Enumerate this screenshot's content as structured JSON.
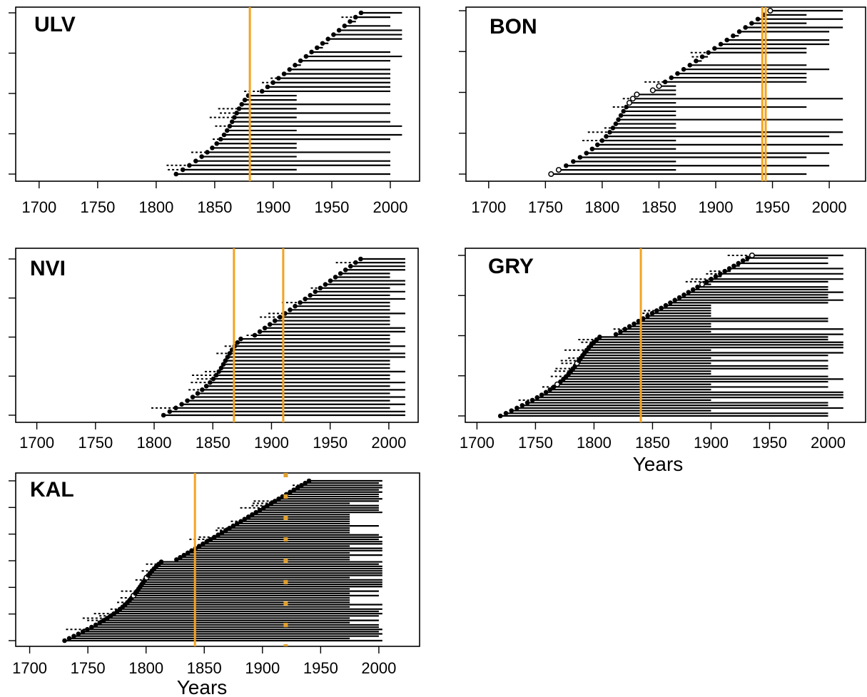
{
  "colors": {
    "event_line": "#f4a321",
    "event_dotted": "#e0a030",
    "series": "#000000",
    "background": "#ffffff"
  },
  "chart_data": [
    {
      "type": "line",
      "panel": "ULV",
      "title": "ULV",
      "xlabel": "",
      "xlim": [
        1680,
        2025
      ],
      "xticks": [
        1700,
        1750,
        1800,
        1850,
        1900,
        1950,
        2000
      ],
      "n_series": 38,
      "series_start_range": [
        1817,
        1975
      ],
      "series_end": [
        1920,
        2000,
        2010
      ],
      "event_years": [
        1880
      ],
      "dotted_event_years": [],
      "open_pith_indices": []
    },
    {
      "type": "line",
      "panel": "BON",
      "title": "BON",
      "xlabel": "",
      "xlim": [
        1680,
        2032
      ],
      "xticks": [
        1700,
        1750,
        1800,
        1850,
        1900,
        1950,
        2000
      ],
      "n_series": 40,
      "series_start_range": [
        1755,
        1948
      ],
      "series_end": [
        1865,
        1980,
        2000,
        2012
      ],
      "event_years": [
        1941,
        1944
      ],
      "dotted_event_years": [],
      "open_pith_indices": [
        0,
        1,
        17,
        18,
        19,
        20,
        21,
        39
      ]
    },
    {
      "type": "line",
      "panel": "NVI",
      "title": "NVI",
      "xlabel": "",
      "xlim": [
        1682,
        2025
      ],
      "xticks": [
        1700,
        1750,
        1800,
        1850,
        1900,
        1950,
        2000
      ],
      "n_series": 44,
      "series_start_range": [
        1808,
        1976
      ],
      "series_end": [
        2001,
        2014
      ],
      "event_years": [
        1868,
        1910
      ],
      "dotted_event_years": [],
      "open_pith_indices": []
    },
    {
      "type": "line",
      "panel": "GRY",
      "title": "GRY",
      "xlabel": "Years",
      "xlim": [
        1690,
        2032
      ],
      "xticks": [
        1700,
        1750,
        1800,
        1850,
        1900,
        1950,
        2000
      ],
      "n_series": 62,
      "series_start_range": [
        1720,
        1935
      ],
      "series_end": [
        1900,
        2000,
        2013
      ],
      "event_years": [
        1840
      ],
      "dotted_event_years": [],
      "open_pith_indices": [
        12,
        20,
        50,
        61
      ]
    },
    {
      "type": "line",
      "panel": "KAL",
      "title": "KAL",
      "xlabel": "Years",
      "xlim": [
        1688,
        2035
      ],
      "xticks": [
        1700,
        1750,
        1800,
        1850,
        1900,
        1950,
        2000
      ],
      "n_series": 72,
      "series_start_range": [
        1730,
        1940
      ],
      "series_end": [
        1975,
        2000,
        2003
      ],
      "event_years": [
        1842
      ],
      "dotted_event_years": [
        1920
      ],
      "open_pith_indices": [
        20,
        28
      ]
    }
  ]
}
